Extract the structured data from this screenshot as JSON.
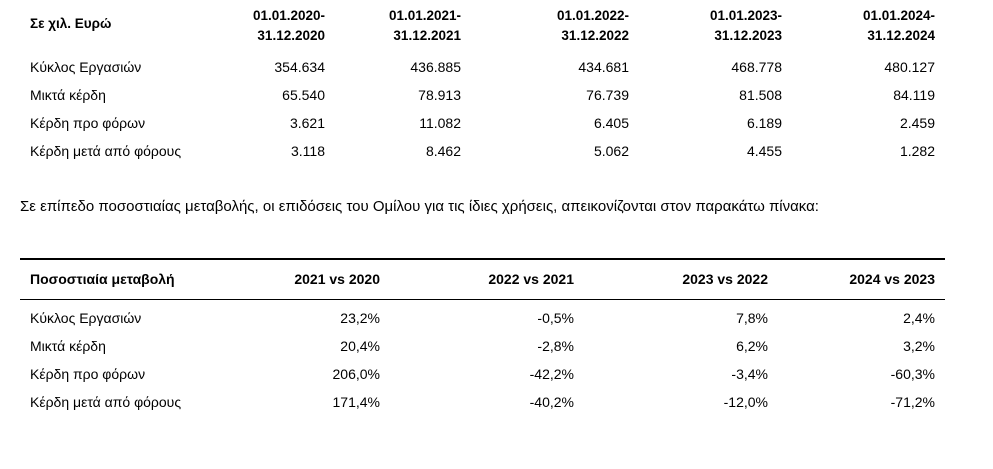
{
  "table1": {
    "corner": "Σε χιλ. Ευρώ",
    "periods": [
      [
        "01.01.2020-",
        "31.12.2020"
      ],
      [
        "01.01.2021-",
        "31.12.2021"
      ],
      [
        "01.01.2022-",
        "31.12.2022"
      ],
      [
        "01.01.2023-",
        "31.12.2023"
      ],
      [
        "01.01.2024-",
        "31.12.2024"
      ]
    ],
    "rows": [
      {
        "label": "Κύκλος Εργασιών",
        "values": [
          "354.634",
          "436.885",
          "434.681",
          "468.778",
          "480.127"
        ]
      },
      {
        "label": "Μικτά κέρδη",
        "values": [
          "65.540",
          "78.913",
          "76.739",
          "81.508",
          "84.119"
        ]
      },
      {
        "label": "Κέρδη προ φόρων",
        "values": [
          "3.621",
          "11.082",
          "6.405",
          "6.189",
          "2.459"
        ]
      },
      {
        "label": "Κέρδη μετά από φόρους",
        "values": [
          "3.118",
          "8.462",
          "5.062",
          "4.455",
          "1.282"
        ]
      }
    ]
  },
  "paragraph": "Σε επίπεδο ποσοστιαίας μεταβολής, οι επιδόσεις του Ομίλου για τις ίδιες χρήσεις, απεικονίζονται στον παρακάτω πίνακα:",
  "table2": {
    "corner": "Ποσοστιαία μεταβολή",
    "columns": [
      "2021 vs 2020",
      "2022 vs 2021",
      "2023 vs 2022",
      "2024 vs 2023"
    ],
    "rows": [
      {
        "label": "Κύκλος Εργασιών",
        "values": [
          "23,2%",
          "-0,5%",
          "7,8%",
          "2,4%"
        ]
      },
      {
        "label": "Μικτά κέρδη",
        "values": [
          "20,4%",
          "-2,8%",
          "6,2%",
          "3,2%"
        ]
      },
      {
        "label": "Κέρδη προ φόρων",
        "values": [
          "206,0%",
          "-42,2%",
          "-3,4%",
          "-60,3%"
        ]
      },
      {
        "label": "Κέρδη μετά από φόρους",
        "values": [
          "171,4%",
          "-40,2%",
          "-12,0%",
          "-71,2%"
        ]
      }
    ]
  }
}
